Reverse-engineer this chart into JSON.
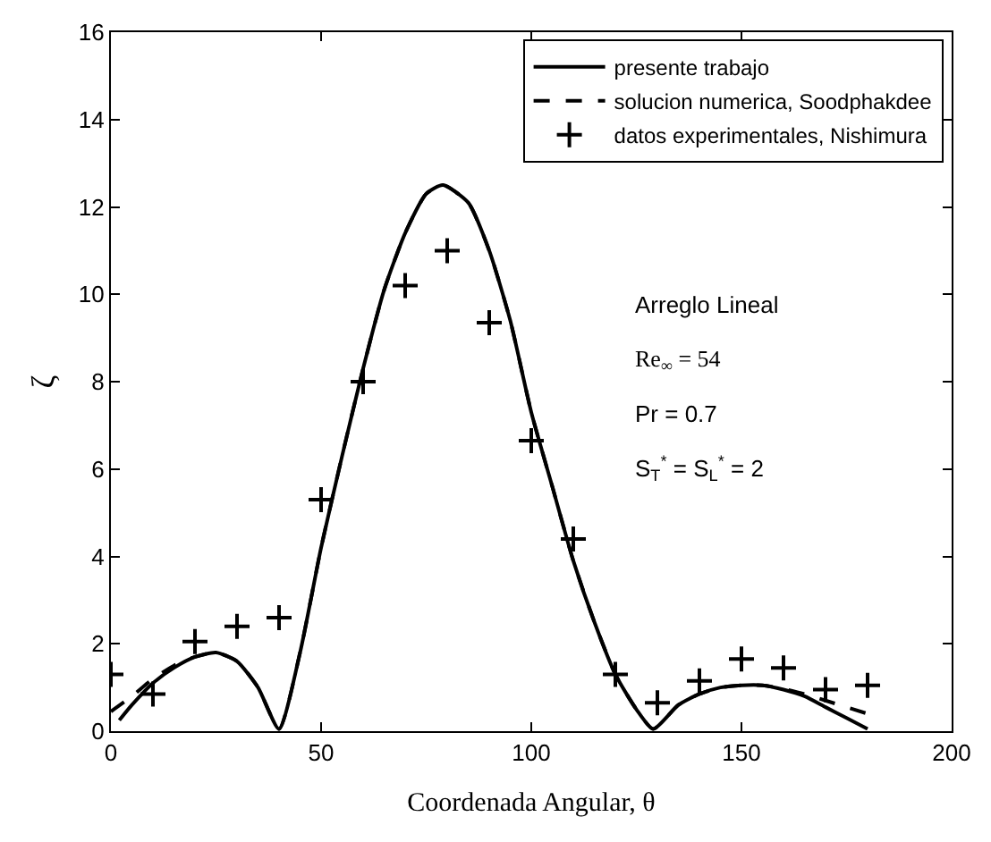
{
  "chart_data": {
    "type": "line",
    "xlabel": "Coordenada Angular, θ",
    "ylabel": "ζ",
    "xlim": [
      0,
      200
    ],
    "xticks": [
      0,
      50,
      100,
      150,
      200
    ],
    "ylim": [
      0,
      16
    ],
    "yticks": [
      0,
      2,
      4,
      6,
      8,
      10,
      12,
      14,
      16
    ],
    "legend": "top right",
    "annotations": [
      "Arreglo Lineal",
      "Re$_{∞}$ = 54",
      "Pr = 0.7",
      "S$_{T}$$^{*}$ = S$_{L}$$^{*}$ = 2"
    ],
    "series": [
      {
        "name": "presente trabajo",
        "line_style": "solid",
        "marker": "none",
        "color": "#000000",
        "x": [
          2,
          5,
          10,
          15,
          20,
          25,
          30,
          35,
          40,
          45,
          50,
          55,
          60,
          65,
          70,
          75,
          79,
          85,
          90,
          95,
          100,
          105,
          110,
          115,
          120,
          125,
          129,
          135,
          140,
          145,
          150,
          155,
          160,
          165,
          170,
          175,
          180
        ],
        "values": [
          0.25,
          0.6,
          1.1,
          1.45,
          1.7,
          1.8,
          1.6,
          1.0,
          0.05,
          1.8,
          4.2,
          6.3,
          8.3,
          10.1,
          11.4,
          12.3,
          12.5,
          12.1,
          11.0,
          9.4,
          7.3,
          5.6,
          3.9,
          2.5,
          1.3,
          0.5,
          0.05,
          0.6,
          0.85,
          1.0,
          1.05,
          1.05,
          0.95,
          0.8,
          0.55,
          0.3,
          0.05
        ]
      },
      {
        "name": "solucion numerica, Soodphakdee",
        "type": "line",
        "line_style": "dashed",
        "marker": "none",
        "color": "#000000",
        "x": [
          0,
          5,
          10,
          15,
          20,
          25,
          30,
          35,
          40,
          45,
          50,
          55,
          60,
          65,
          70,
          75,
          79,
          85,
          90,
          95,
          100,
          105,
          110,
          115,
          120,
          125,
          129,
          135,
          140,
          145,
          150,
          155,
          160,
          165,
          170,
          175,
          180
        ],
        "values": [
          0.45,
          0.8,
          1.2,
          1.5,
          1.7,
          1.8,
          1.6,
          1.0,
          0.05,
          1.8,
          4.2,
          6.3,
          8.3,
          10.1,
          11.4,
          12.3,
          12.5,
          12.1,
          11.0,
          9.4,
          7.3,
          5.6,
          3.9,
          2.5,
          1.3,
          0.5,
          0.05,
          0.6,
          0.85,
          1.0,
          1.05,
          1.05,
          0.97,
          0.85,
          0.7,
          0.55,
          0.4
        ]
      },
      {
        "name": "datos experimentales, Nishimura",
        "type": "scatter",
        "marker": "cross",
        "color": "#000000",
        "x": [
          0,
          10,
          20,
          30,
          40,
          50,
          60,
          70,
          80,
          90,
          100,
          110,
          120,
          130,
          140,
          150,
          160,
          170,
          180
        ],
        "values": [
          1.3,
          0.85,
          2.05,
          2.4,
          2.6,
          5.3,
          8.0,
          10.2,
          11.0,
          9.35,
          6.65,
          4.4,
          1.3,
          0.65,
          1.15,
          1.65,
          1.45,
          0.95,
          1.05
        ]
      }
    ]
  }
}
